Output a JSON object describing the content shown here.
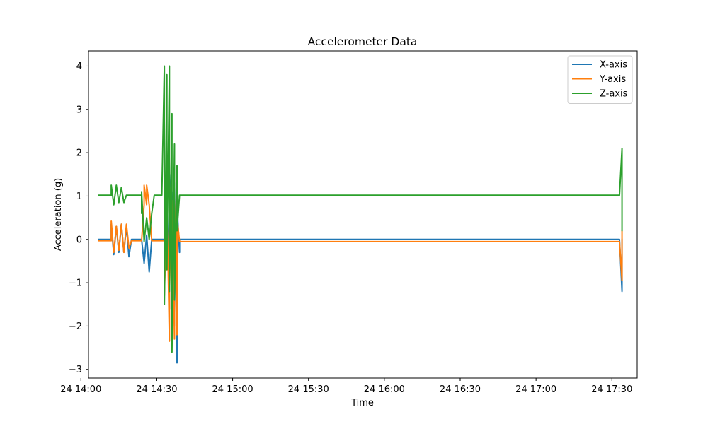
{
  "chart_data": {
    "type": "line",
    "title": "Accelerometer Data",
    "xlabel": "Time",
    "ylabel": "Acceleration (g)",
    "xlim": [
      "24 14:03",
      "24 17:40"
    ],
    "ylim": [
      -3.2,
      4.35
    ],
    "x_ticks": [
      {
        "t": "24 14:00",
        "label": "24 14:00"
      },
      {
        "t": "24 14:30",
        "label": "24 14:30"
      },
      {
        "t": "24 15:00",
        "label": "24 15:00"
      },
      {
        "t": "24 15:30",
        "label": "24 15:30"
      },
      {
        "t": "24 16:00",
        "label": "24 16:00"
      },
      {
        "t": "24 16:30",
        "label": "24 16:30"
      },
      {
        "t": "24 17:00",
        "label": "24 17:00"
      },
      {
        "t": "24 17:30",
        "label": "24 17:30"
      }
    ],
    "y_ticks": [
      {
        "v": -3,
        "label": "−3"
      },
      {
        "v": -2,
        "label": "−2"
      },
      {
        "v": -1,
        "label": "−1"
      },
      {
        "v": 0,
        "label": "0"
      },
      {
        "v": 1,
        "label": "1"
      },
      {
        "v": 2,
        "label": "2"
      },
      {
        "v": 3,
        "label": "3"
      },
      {
        "v": 4,
        "label": "4"
      }
    ],
    "grid": false,
    "legend_position": "top-right",
    "series": [
      {
        "name": "X-axis",
        "color": "#1f77b4",
        "points": [
          [
            "24 14:07",
            0.0
          ],
          [
            "24 14:12",
            0.0
          ],
          [
            "24 14:12",
            0.35
          ],
          [
            "24 14:13",
            -0.35
          ],
          [
            "24 14:14",
            0.3
          ],
          [
            "24 14:15",
            -0.3
          ],
          [
            "24 14:16",
            0.35
          ],
          [
            "24 14:17",
            -0.3
          ],
          [
            "24 14:18",
            0.3
          ],
          [
            "24 14:19",
            -0.4
          ],
          [
            "24 14:20",
            0.0
          ],
          [
            "24 14:24",
            0.0
          ],
          [
            "24 14:25",
            -0.55
          ],
          [
            "24 14:26",
            0.1
          ],
          [
            "24 14:27",
            -0.75
          ],
          [
            "24 14:28",
            0.0
          ],
          [
            "24 14:33",
            0.0
          ],
          [
            "24 14:33",
            -1.2
          ],
          [
            "24 14:34",
            1.2
          ],
          [
            "24 14:35",
            -1.6
          ],
          [
            "24 14:35",
            1.5
          ],
          [
            "24 14:36",
            -1.2
          ],
          [
            "24 14:36",
            1.1
          ],
          [
            "24 14:37",
            -2.0
          ],
          [
            "24 14:37",
            1.3
          ],
          [
            "24 14:38",
            -2.85
          ],
          [
            "24 14:38",
            0.8
          ],
          [
            "24 14:39",
            -0.3
          ],
          [
            "24 14:39",
            0.0
          ],
          [
            "24 17:33",
            0.0
          ],
          [
            "24 17:34",
            -1.2
          ],
          [
            "24 17:34",
            0.0
          ]
        ]
      },
      {
        "name": "Y-axis",
        "color": "#ff7f0e",
        "points": [
          [
            "24 14:07",
            -0.03
          ],
          [
            "24 14:12",
            -0.03
          ],
          [
            "24 14:12",
            0.42
          ],
          [
            "24 14:13",
            -0.3
          ],
          [
            "24 14:14",
            0.3
          ],
          [
            "24 14:15",
            -0.25
          ],
          [
            "24 14:16",
            0.35
          ],
          [
            "24 14:17",
            -0.3
          ],
          [
            "24 14:18",
            0.35
          ],
          [
            "24 14:19",
            -0.2
          ],
          [
            "24 14:20",
            -0.03
          ],
          [
            "24 14:24",
            -0.03
          ],
          [
            "24 14:25",
            0.8
          ],
          [
            "24 14:25",
            1.25
          ],
          [
            "24 14:26",
            0.8
          ],
          [
            "24 14:26",
            1.25
          ],
          [
            "24 14:27",
            0.8
          ],
          [
            "24 14:28",
            -0.03
          ],
          [
            "24 14:33",
            -0.03
          ],
          [
            "24 14:33",
            -1.3
          ],
          [
            "24 14:34",
            1.0
          ],
          [
            "24 14:35",
            -2.35
          ],
          [
            "24 14:35",
            1.2
          ],
          [
            "24 14:36",
            -1.8
          ],
          [
            "24 14:36",
            0.9
          ],
          [
            "24 14:37",
            -2.3
          ],
          [
            "24 14:37",
            1.0
          ],
          [
            "24 14:38",
            -2.2
          ],
          [
            "24 14:38",
            0.5
          ],
          [
            "24 14:39",
            -0.05
          ],
          [
            "24 17:33",
            -0.05
          ],
          [
            "24 17:34",
            -0.95
          ],
          [
            "24 17:34",
            0.2
          ],
          [
            "24 17:34",
            -0.05
          ]
        ]
      },
      {
        "name": "Z-axis",
        "color": "#2ca02c",
        "points": [
          [
            "24 14:07",
            1.02
          ],
          [
            "24 14:12",
            1.02
          ],
          [
            "24 14:12",
            1.25
          ],
          [
            "24 14:13",
            0.8
          ],
          [
            "24 14:14",
            1.25
          ],
          [
            "24 14:15",
            0.85
          ],
          [
            "24 14:16",
            1.2
          ],
          [
            "24 14:17",
            0.85
          ],
          [
            "24 14:18",
            1.02
          ],
          [
            "24 14:24",
            1.02
          ],
          [
            "24 14:24",
            0.6
          ],
          [
            "24 14:24",
            1.1
          ],
          [
            "24 14:25",
            -0.05
          ],
          [
            "24 14:26",
            0.5
          ],
          [
            "24 14:27",
            0.0
          ],
          [
            "24 14:28",
            0.6
          ],
          [
            "24 14:29",
            1.02
          ],
          [
            "24 14:32",
            1.02
          ],
          [
            "24 14:33",
            4.0
          ],
          [
            "24 14:33",
            -1.5
          ],
          [
            "24 14:34",
            3.8
          ],
          [
            "24 14:34",
            -0.7
          ],
          [
            "24 14:35",
            4.0
          ],
          [
            "24 14:35",
            -1.2
          ],
          [
            "24 14:36",
            2.9
          ],
          [
            "24 14:36",
            -2.6
          ],
          [
            "24 14:37",
            2.2
          ],
          [
            "24 14:37",
            -1.4
          ],
          [
            "24 14:38",
            1.7
          ],
          [
            "24 14:38",
            0.2
          ],
          [
            "24 14:39",
            1.02
          ],
          [
            "24 17:33",
            1.02
          ],
          [
            "24 17:34",
            2.1
          ],
          [
            "24 17:34",
            0.2
          ],
          [
            "24 17:34",
            1.02
          ]
        ]
      }
    ]
  }
}
